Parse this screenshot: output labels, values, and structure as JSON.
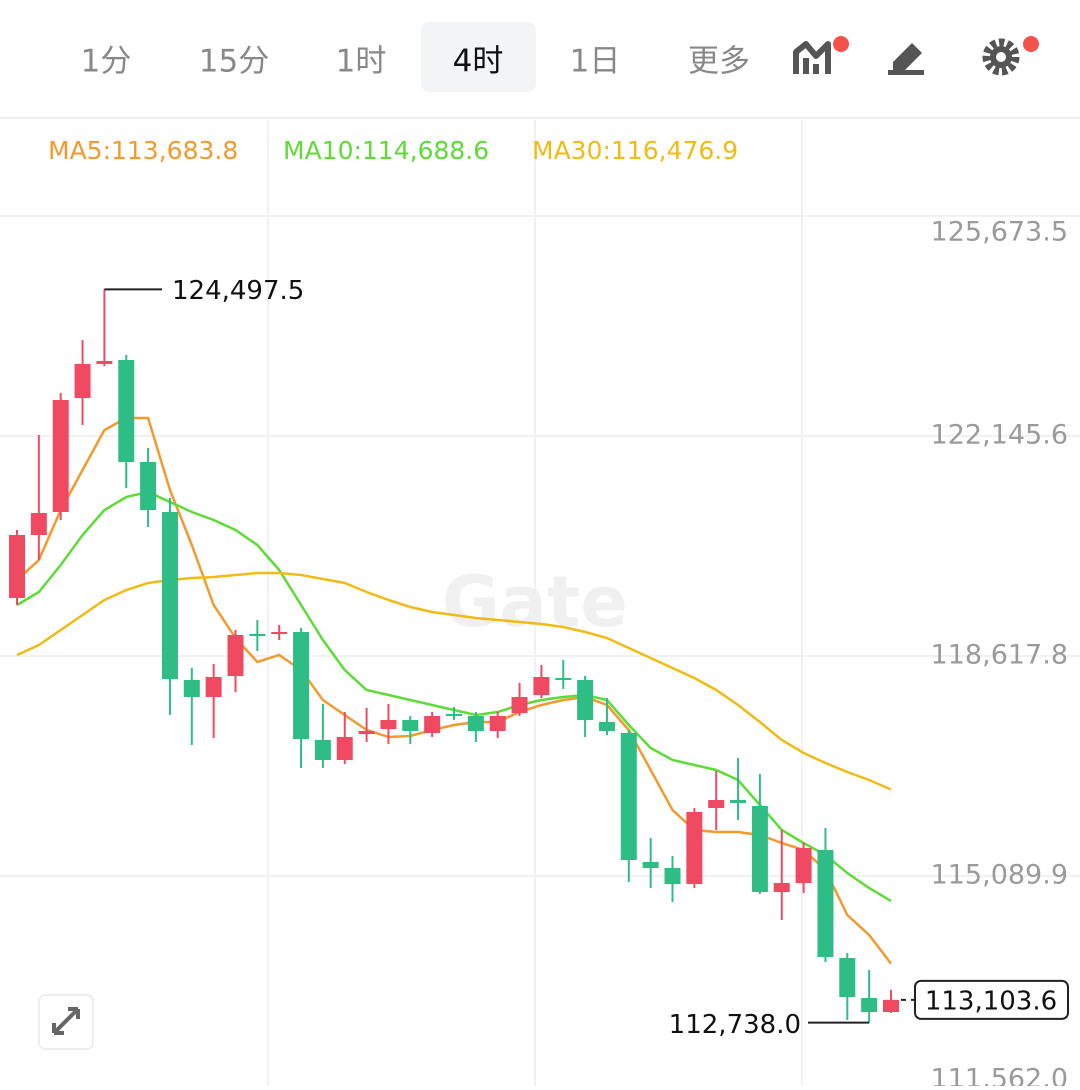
{
  "header": {
    "tabs": [
      {
        "label": "1分",
        "active": false
      },
      {
        "label": "15分",
        "active": false
      },
      {
        "label": "1时",
        "active": false
      },
      {
        "label": "4时",
        "active": true
      },
      {
        "label": "1日",
        "active": false
      },
      {
        "label": "更多",
        "active": false
      }
    ]
  },
  "chart_data": {
    "type": "candlestick",
    "watermark": "Gate",
    "up_color": "#f04a63",
    "down_color": "#2ebd85",
    "open": [
      119547.9,
      120558.2,
      120927.0,
      122755.1,
      123300.4,
      123364.5,
      121728.8,
      120927.0,
      118233.0,
      117960.4,
      118297.1,
      118970.6,
      118970.6,
      119002.7,
      117270.8,
      116950.1,
      117367.0,
      117447.2,
      117591.5,
      117383.1,
      117687.8,
      117655.7,
      117415.1,
      117703.8,
      117992.4,
      118265.0,
      118233.0,
      117559.5,
      117383.1,
      115314.4,
      115218.2,
      114961.6,
      116180.4,
      116308.7,
      116212.4,
      114833.3,
      114977.7,
      115506.9,
      113775.0,
      113133.5,
      112909.0
    ],
    "high": [
      120638.4,
      122161.8,
      122835.3,
      123685.2,
      124497.5,
      123444.7,
      121953.3,
      121151.5,
      118425.4,
      118489.6,
      119034.8,
      119195.1,
      119115.0,
      119066.8,
      117848.1,
      117719.8,
      117784.0,
      117848.1,
      117655.7,
      117719.8,
      117800.0,
      117719.8,
      117719.8,
      118184.9,
      118473.5,
      118553.7,
      118297.1,
      117944.3,
      117431.2,
      115699.3,
      115410.6,
      116180.4,
      116773.7,
      116982.2,
      116725.6,
      115827.6,
      115619.1,
      115859.6,
      113855.1,
      113582.5,
      113261.8
    ],
    "low": [
      119435.7,
      120157.3,
      120798.7,
      122322.2,
      123268.3,
      121311.9,
      120686.5,
      117671.7,
      117190.6,
      117302.9,
      118040.5,
      118698.0,
      118874.4,
      116821.8,
      116821.8,
      116886.0,
      117238.7,
      117206.7,
      117206.7,
      117318.9,
      117591.5,
      117238.7,
      117302.9,
      117655.7,
      117944.3,
      118088.7,
      117318.9,
      117351.0,
      114993.7,
      114897.5,
      114673.0,
      114897.5,
      115827.6,
      115987.9,
      114801.3,
      114384.3,
      114817.3,
      113710.8,
      112780.7,
      112738.0,
      112893.0
    ],
    "close": [
      120558.2,
      120911.0,
      122723.1,
      123300.4,
      123348.5,
      121728.8,
      120959.1,
      118249.0,
      117960.4,
      118281.1,
      118954.6,
      118938.6,
      119002.7,
      117286.9,
      116950.1,
      117318.9,
      117415.1,
      117591.5,
      117415.1,
      117655.7,
      117655.7,
      117415.1,
      117655.7,
      117960.4,
      118281.1,
      118233.0,
      117591.5,
      117415.1,
      115346.5,
      115218.2,
      114961.6,
      116116.2,
      116308.7,
      116260.5,
      114833.3,
      114977.7,
      115538.9,
      113791.0,
      113149.6,
      112909.0,
      113103.6
    ],
    "series": [
      {
        "name": "MA5:113,683.8",
        "color": "#f39a2e",
        "values": [
          119836.6,
          120157.3,
          120959.1,
          121600.5,
          122242.0,
          122434.4,
          122434.4,
          121279.8,
          120397.8,
          119435.7,
          118906.5,
          118521.6,
          118633.9,
          118393.3,
          117912.3,
          117671.7,
          117431.2,
          117318.9,
          117335.0,
          117431.2,
          117511.4,
          117559.5,
          117559.5,
          117719.8,
          117832.1,
          117912.3,
          117960.4,
          117832.1,
          117431.2,
          116789.7,
          116148.3,
          115827.6,
          115795.5,
          115795.5,
          115747.4,
          115619.1,
          115506.9,
          115186.1,
          114464.5,
          114143.8,
          113683.8
        ]
      },
      {
        "name": "MA10:114,688.6",
        "color": "#5edb37",
        "values": [
          119435.7,
          119644.1,
          120077.1,
          120558.2,
          120959.1,
          121167.6,
          121247.7,
          121087.4,
          120927.0,
          120798.7,
          120638.4,
          120397.8,
          119996.9,
          119435.7,
          118874.4,
          118393.3,
          118072.6,
          117992.4,
          117912.3,
          117832.1,
          117751.9,
          117671.7,
          117719.8,
          117832.1,
          117912.3,
          117960.4,
          117992.4,
          117912.3,
          117511.4,
          117142.5,
          116950.1,
          116869.9,
          116789.7,
          116629.4,
          116228.5,
          115827.6,
          115619.1,
          115426.7,
          115138.0,
          114897.5,
          114688.6
        ]
      },
      {
        "name": "MA30:116,476.9",
        "color": "#f1bb14",
        "values": [
          118633.9,
          118794.2,
          119034.8,
          119275.3,
          119515.9,
          119676.2,
          119788.5,
          119836.6,
          119868.6,
          119884.7,
          119916.8,
          119948.8,
          119948.8,
          119916.8,
          119852.6,
          119788.5,
          119644.1,
          119515.9,
          119403.6,
          119323.4,
          119275.3,
          119227.2,
          119195.1,
          119163.1,
          119131.0,
          119082.9,
          119002.7,
          118906.5,
          118746.1,
          118585.8,
          118425.4,
          118265.0,
          118072.6,
          117832.1,
          117559.5,
          117270.8,
          117062.3,
          116902.0,
          116757.7,
          116629.4,
          116476.9
        ]
      }
    ],
    "ylim": [
      111562.0,
      127213.0
    ],
    "yticks": [
      {
        "value": 125673.5,
        "label": "125,673.5"
      },
      {
        "value": 122145.6,
        "label": "122,145.6"
      },
      {
        "value": 118617.8,
        "label": "118,617.8"
      },
      {
        "value": 115089.9,
        "label": "115,089.9"
      },
      {
        "value": 111562.0,
        "label": "111,562.0"
      }
    ],
    "grid": true,
    "high_annotation": {
      "value": 124497.5,
      "label": "124,497.5"
    },
    "low_annotation": {
      "value": 112738.0,
      "label": "112,738.0"
    },
    "last_price": {
      "value": 113103.6,
      "label": "113,103.6"
    }
  }
}
